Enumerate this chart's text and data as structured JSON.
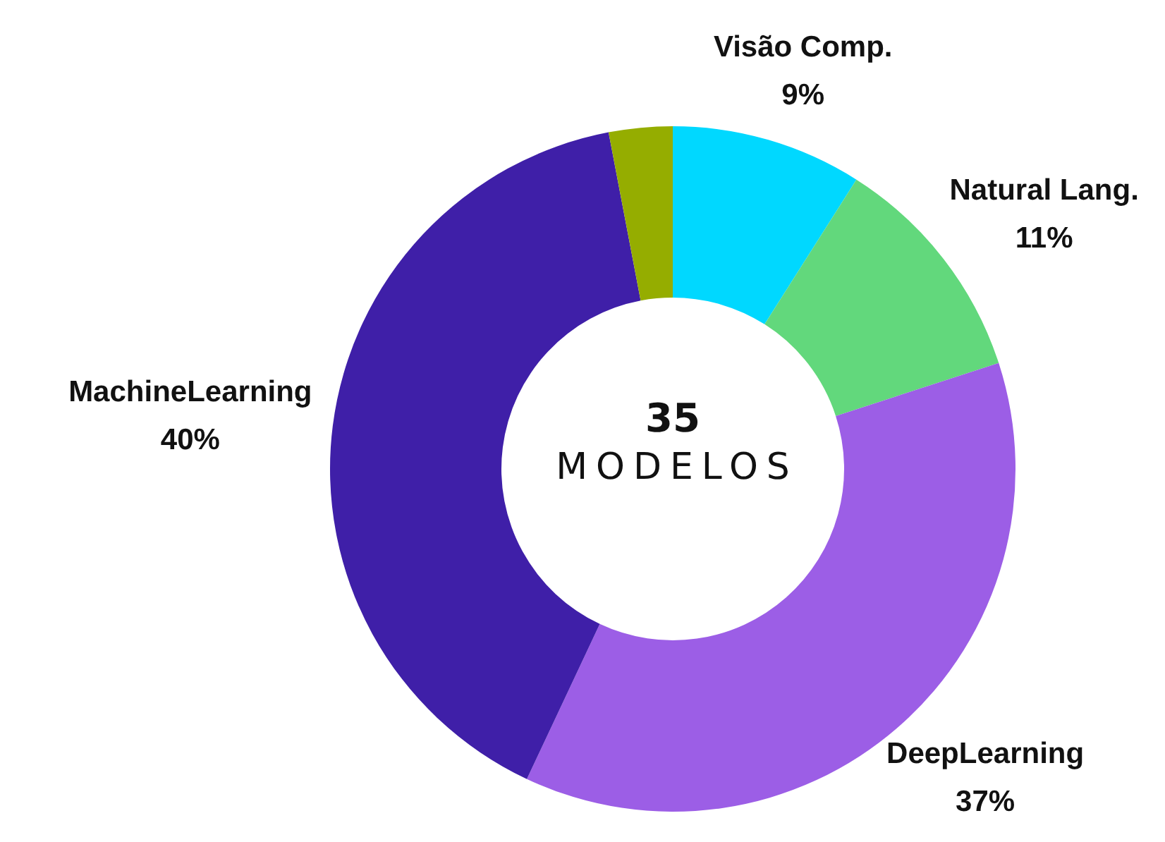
{
  "chart_data": {
    "type": "donut",
    "categories": [
      "Visão Comp.",
      "Natural Lang.",
      "DeepLearning",
      "MachineLearning",
      null
    ],
    "values": [
      9,
      11,
      37,
      40,
      3
    ],
    "colors": [
      "#00d8ff",
      "#62d87c",
      "#9c5ee6",
      "#3f1fa8",
      "#95ad00"
    ],
    "value_labels": [
      "9%",
      "11%",
      "37%",
      "40%",
      null
    ],
    "legend": false,
    "annotations": [
      "35",
      "MODELOS"
    ]
  }
}
